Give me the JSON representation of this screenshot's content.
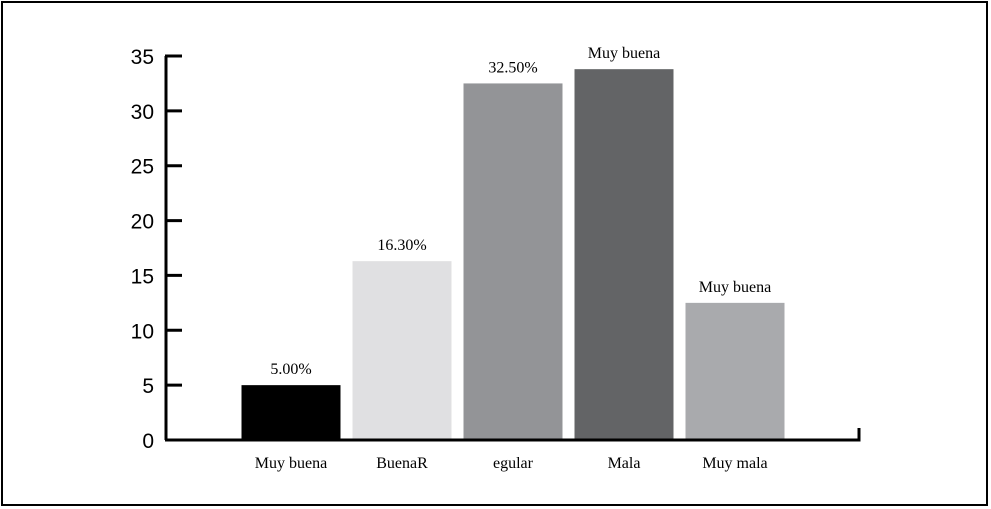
{
  "chart_data": {
    "type": "bar",
    "title": "",
    "xlabel": "",
    "ylabel": "",
    "ylim": [
      0,
      35
    ],
    "yticks": [
      0,
      5,
      10,
      15,
      20,
      25,
      30,
      35
    ],
    "grid": false,
    "legend": "none",
    "categories": [
      "Muy buena",
      "BuenaR",
      "egular",
      "Mala",
      "Muy mala"
    ],
    "values": [
      5.0,
      16.3,
      32.5,
      33.8,
      12.5
    ],
    "data_labels": [
      "5.00%",
      "16.30%",
      "32.50%",
      "Muy buena",
      "Muy buena"
    ],
    "colors": [
      "#000000",
      "#e0e0e2",
      "#939497",
      "#636466",
      "#a9aaad"
    ]
  }
}
